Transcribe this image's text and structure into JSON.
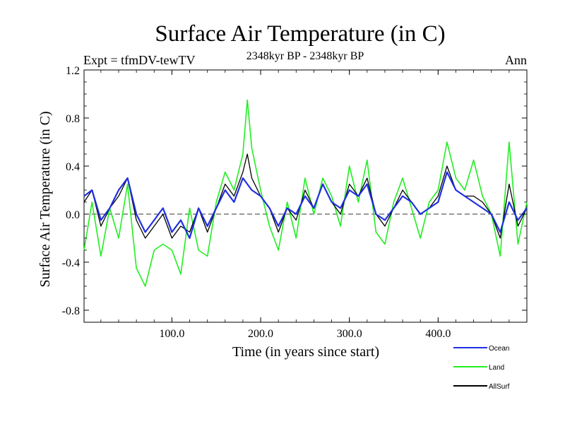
{
  "chart_data": {
    "type": "line",
    "title": "Surface Air Temperature (in C)",
    "subtitle_left": "Expt = tfmDV-tewTV",
    "subtitle_center": "2348kyr BP - 2348kyr BP",
    "subtitle_right": "Ann",
    "xlabel": "Time (in years since start)",
    "ylabel": "Surface Air Temperature (in C)",
    "xlim": [
      1,
      500
    ],
    "ylim": [
      -0.9,
      1.2
    ],
    "x_ticks": [
      100,
      200,
      300,
      400
    ],
    "x_tick_labels": [
      "100.0",
      "200.0",
      "300.0",
      "400.0"
    ],
    "y_ticks": [
      -0.8,
      -0.4,
      0.0,
      0.4,
      0.8,
      1.2
    ],
    "y_tick_labels": [
      "-0.8",
      "-0.4",
      "0.0",
      "0.4",
      "0.8",
      "1.2"
    ],
    "zero_line": 0.0,
    "x": [
      1,
      10,
      20,
      30,
      40,
      50,
      60,
      70,
      80,
      90,
      100,
      110,
      120,
      130,
      140,
      150,
      160,
      170,
      180,
      185,
      190,
      200,
      210,
      220,
      230,
      240,
      250,
      260,
      270,
      280,
      290,
      300,
      310,
      320,
      330,
      340,
      350,
      360,
      370,
      380,
      390,
      400,
      410,
      420,
      430,
      440,
      450,
      460,
      470,
      480,
      490,
      500
    ],
    "series": [
      {
        "name": "Ocean",
        "color": "#1f2fe0",
        "values": [
          0.15,
          0.2,
          -0.05,
          0.05,
          0.2,
          0.3,
          0.0,
          -0.15,
          -0.05,
          0.05,
          -0.15,
          -0.05,
          -0.2,
          0.05,
          -0.1,
          0.05,
          0.2,
          0.1,
          0.3,
          0.25,
          0.2,
          0.15,
          0.05,
          -0.1,
          0.05,
          0.0,
          0.15,
          0.05,
          0.25,
          0.1,
          0.05,
          0.2,
          0.15,
          0.25,
          0.0,
          -0.05,
          0.05,
          0.15,
          0.1,
          0.0,
          0.05,
          0.1,
          0.35,
          0.2,
          0.15,
          0.1,
          0.05,
          0.0,
          -0.15,
          0.1,
          -0.05,
          0.05
        ]
      },
      {
        "name": "Land",
        "color": "#22ee22",
        "values": [
          -0.3,
          0.1,
          -0.35,
          0.05,
          -0.2,
          0.25,
          -0.45,
          -0.6,
          -0.3,
          -0.25,
          -0.3,
          -0.5,
          0.05,
          -0.3,
          -0.35,
          0.1,
          0.35,
          0.2,
          0.5,
          0.95,
          0.55,
          0.2,
          -0.1,
          -0.3,
          0.1,
          -0.2,
          0.3,
          0.0,
          0.3,
          0.15,
          -0.1,
          0.4,
          0.1,
          0.45,
          -0.15,
          -0.25,
          0.1,
          0.3,
          0.05,
          -0.2,
          0.1,
          0.2,
          0.6,
          0.3,
          0.2,
          0.45,
          0.15,
          0.0,
          -0.35,
          0.6,
          -0.25,
          0.1
        ]
      },
      {
        "name": "AllSurf",
        "color": "#000000",
        "values": [
          0.1,
          0.2,
          -0.1,
          0.05,
          0.15,
          0.3,
          -0.05,
          -0.2,
          -0.1,
          0.0,
          -0.2,
          -0.1,
          -0.15,
          0.05,
          -0.15,
          0.05,
          0.25,
          0.15,
          0.35,
          0.5,
          0.3,
          0.15,
          0.05,
          -0.15,
          0.05,
          -0.05,
          0.2,
          0.05,
          0.25,
          0.1,
          0.0,
          0.25,
          0.15,
          0.3,
          0.0,
          -0.1,
          0.05,
          0.2,
          0.1,
          0.0,
          0.05,
          0.15,
          0.4,
          0.2,
          0.15,
          0.15,
          0.1,
          0.0,
          -0.2,
          0.25,
          -0.1,
          0.05
        ]
      }
    ],
    "legend_position": "bottom-right"
  }
}
